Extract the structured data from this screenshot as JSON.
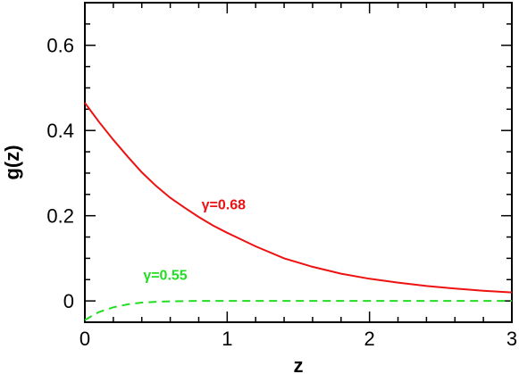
{
  "chart_data": {
    "type": "line",
    "xlabel": "z",
    "ylabel": "g(z)",
    "xlim": [
      0,
      3
    ],
    "ylim": [
      -0.05,
      0.7
    ],
    "x_ticks": [
      0,
      1,
      2,
      3
    ],
    "x_tick_labels": [
      "0",
      "1",
      "2",
      "3"
    ],
    "y_ticks": [
      0,
      0.2,
      0.4,
      0.6
    ],
    "y_tick_labels": [
      "0",
      "0.2",
      "0.4",
      "0.6"
    ],
    "grid": false,
    "series": [
      {
        "name": "γ=0.68",
        "color": "#ee1111",
        "style": "solid",
        "x": [
          0,
          0.1,
          0.2,
          0.3,
          0.4,
          0.5,
          0.6,
          0.7,
          0.8,
          0.9,
          1.0,
          1.2,
          1.4,
          1.6,
          1.8,
          2.0,
          2.2,
          2.4,
          2.6,
          2.8,
          3.0
        ],
        "y": [
          0.465,
          0.42,
          0.378,
          0.339,
          0.302,
          0.27,
          0.242,
          0.219,
          0.197,
          0.177,
          0.16,
          0.128,
          0.1,
          0.08,
          0.064,
          0.052,
          0.043,
          0.035,
          0.029,
          0.024,
          0.02
        ]
      },
      {
        "name": "γ=0.55",
        "color": "#22dd22",
        "style": "dashed",
        "x": [
          0,
          0.05,
          0.1,
          0.2,
          0.3,
          0.4,
          0.5,
          0.6,
          0.8,
          1.0,
          1.5,
          2.0,
          2.5,
          3.0
        ],
        "y": [
          -0.045,
          -0.035,
          -0.026,
          -0.015,
          -0.008,
          -0.004,
          -0.002,
          -0.001,
          0.0,
          0.0,
          0.0,
          0.0,
          0.0,
          0.0
        ]
      }
    ],
    "annotations": [
      {
        "text": "γ=0.68",
        "x": 0.82,
        "y": 0.215,
        "color": "#ee1111"
      },
      {
        "text": "γ=0.55",
        "x": 0.41,
        "y": 0.05,
        "color": "#22dd22"
      }
    ]
  }
}
